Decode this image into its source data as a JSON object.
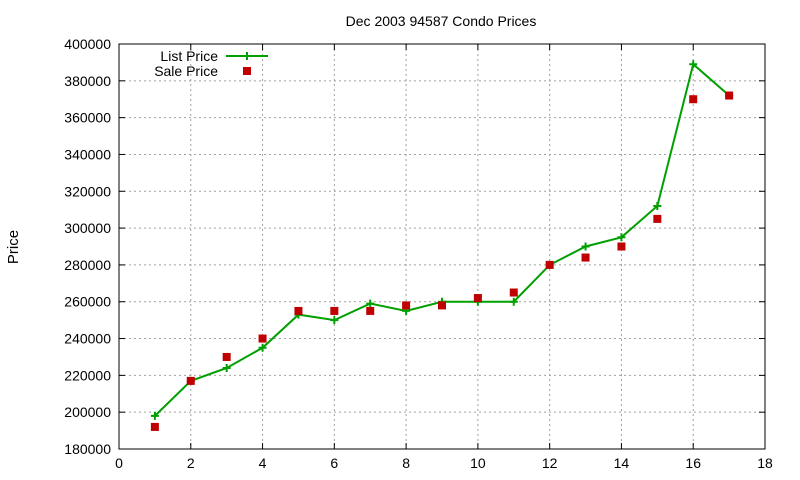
{
  "chart_data": {
    "type": "line",
    "title": "Dec 2003 94587 Condo Prices",
    "xlabel": "",
    "ylabel": "Price",
    "xlim": [
      0,
      18
    ],
    "ylim": [
      180000,
      400000
    ],
    "xticks": [
      "0",
      "2",
      "4",
      "6",
      "8",
      "10",
      "12",
      "14",
      "16",
      "18"
    ],
    "yticks": [
      "180000",
      "200000",
      "220000",
      "240000",
      "260000",
      "280000",
      "300000",
      "320000",
      "340000",
      "360000",
      "380000",
      "400000"
    ],
    "grid": true,
    "legend_position": "top-left",
    "series": [
      {
        "name": "List Price",
        "style": "line+plus",
        "color": "#00a000",
        "x": [
          1,
          2,
          3,
          4,
          5,
          6,
          7,
          8,
          9,
          10,
          11,
          12,
          13,
          14,
          15,
          16,
          17
        ],
        "y": [
          198000,
          217000,
          224000,
          235000,
          253000,
          250000,
          259000,
          255000,
          260000,
          260000,
          260000,
          280000,
          290000,
          295000,
          312000,
          389000,
          372000
        ]
      },
      {
        "name": "Sale Price",
        "style": "square-points",
        "color": "#c00000",
        "x": [
          1,
          2,
          3,
          4,
          5,
          6,
          7,
          8,
          9,
          10,
          11,
          12,
          13,
          14,
          15,
          16,
          17
        ],
        "y": [
          192000,
          217000,
          230000,
          240000,
          255000,
          255000,
          255000,
          258000,
          258000,
          262000,
          265000,
          280000,
          284000,
          290000,
          305000,
          370000,
          372000
        ]
      }
    ]
  }
}
